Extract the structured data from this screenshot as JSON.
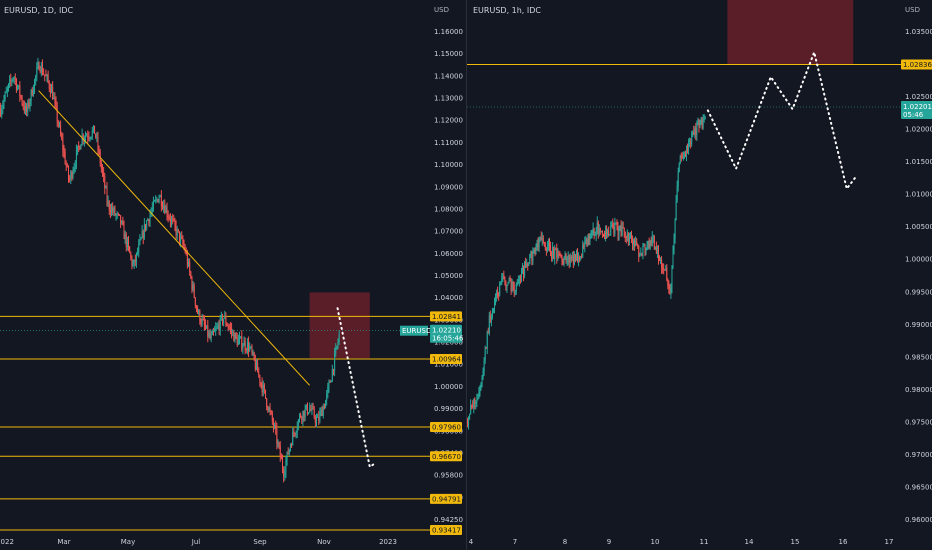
{
  "chart_data": [
    {
      "type": "candlestick",
      "title": "EURUSD, 1D, IDC",
      "currency": "USD",
      "ylim": [
        0.93417,
        1.168
      ],
      "yticks": [
        "1.16000",
        "1.15000",
        "1.14000",
        "1.13000",
        "1.12000",
        "1.11000",
        "1.10000",
        "1.09000",
        "1.08000",
        "1.07000",
        "1.06000",
        "1.05000",
        "1.04000",
        "1.03000",
        "1.02000",
        "1.01000",
        "1.00000",
        "0.99000",
        "0.98000",
        "0.97400",
        "0.95800",
        "0.95000",
        "0.94250"
      ],
      "xticks": [
        "2022",
        "Mar",
        "May",
        "Jul",
        "Sep",
        "Nov",
        "2023"
      ],
      "symbol_label": "EURUSD",
      "price_tag": "1.02210",
      "countdown": "16:05:46",
      "levels": [
        {
          "label": "1.02841",
          "value": 1.02841
        },
        {
          "label": "1.00964",
          "value": 1.00964
        },
        {
          "label": "0.97960",
          "value": 0.9796
        },
        {
          "label": "0.96670",
          "value": 0.9667
        },
        {
          "label": "0.94791",
          "value": 0.94791
        },
        {
          "label": "0.93417",
          "value": 0.93417
        }
      ],
      "current_price": 1.0221,
      "zone": {
        "t0": 0.72,
        "t1": 0.86,
        "y_low": 1.01,
        "y_high": 1.039
      },
      "trendline": [
        {
          "t": 0.09,
          "y": 1.128
        },
        {
          "t": 0.72,
          "y": 0.998
        }
      ],
      "projection": [
        {
          "t": 0.785,
          "y": 1.032
        },
        {
          "t": 0.86,
          "y": 0.962
        },
        {
          "t": 0.875,
          "y": 0.964
        }
      ],
      "close_path": [
        [
          0.0,
          1.12
        ],
        [
          0.03,
          1.135
        ],
        [
          0.06,
          1.118
        ],
        [
          0.09,
          1.14
        ],
        [
          0.12,
          1.128
        ],
        [
          0.16,
          1.088
        ],
        [
          0.19,
          1.108
        ],
        [
          0.22,
          1.11
        ],
        [
          0.25,
          1.078
        ],
        [
          0.28,
          1.07
        ],
        [
          0.31,
          1.05
        ],
        [
          0.34,
          1.07
        ],
        [
          0.37,
          1.082
        ],
        [
          0.4,
          1.07
        ],
        [
          0.43,
          1.058
        ],
        [
          0.46,
          1.03
        ],
        [
          0.49,
          1.018
        ],
        [
          0.52,
          1.028
        ],
        [
          0.55,
          1.018
        ],
        [
          0.58,
          1.015
        ],
        [
          0.61,
          0.998
        ],
        [
          0.64,
          0.978
        ],
        [
          0.66,
          0.96
        ],
        [
          0.68,
          0.975
        ],
        [
          0.7,
          0.985
        ],
        [
          0.72,
          0.988
        ],
        [
          0.74,
          0.982
        ],
        [
          0.76,
          0.992
        ],
        [
          0.78,
          1.01
        ],
        [
          0.79,
          1.02
        ]
      ]
    },
    {
      "type": "candlestick",
      "title": "EURUSD, 1h, IDC",
      "currency": "USD",
      "ylim": [
        0.9588,
        1.038
      ],
      "yticks": [
        "1.03500",
        "1.03000",
        "1.02500",
        "1.02000",
        "1.01500",
        "1.01000",
        "1.00500",
        "1.00000",
        "0.99500",
        "0.99000",
        "0.98500",
        "0.98000",
        "0.97500",
        "0.97000",
        "0.96500",
        "0.96000"
      ],
      "xticks": [
        "4",
        "7",
        "8",
        "9",
        "10",
        "11",
        "14",
        "15",
        "16",
        "17"
      ],
      "price_tag": "1.02201",
      "countdown": "05:46",
      "levels": [
        {
          "label": "1.02836",
          "value": 1.02836
        }
      ],
      "current_price": 1.02201,
      "zone": {
        "t0": 0.6,
        "t1": 0.89,
        "y_low": 1.0283,
        "y_high": 1.04
      },
      "projection": [
        {
          "t": 0.555,
          "y": 1.0215
        },
        {
          "t": 0.62,
          "y": 1.0128
        },
        {
          "t": 0.7,
          "y": 1.0265
        },
        {
          "t": 0.75,
          "y": 1.0217
        },
        {
          "t": 0.8,
          "y": 1.0302
        },
        {
          "t": 0.875,
          "y": 1.0098
        },
        {
          "t": 0.895,
          "y": 1.0115
        }
      ],
      "close_path": [
        [
          0.0,
          0.9755
        ],
        [
          0.03,
          0.98
        ],
        [
          0.05,
          0.99
        ],
        [
          0.08,
          0.996
        ],
        [
          0.11,
          0.995
        ],
        [
          0.14,
          0.999
        ],
        [
          0.17,
          1.002
        ],
        [
          0.2,
          1.0
        ],
        [
          0.23,
          0.999
        ],
        [
          0.26,
          1.0
        ],
        [
          0.3,
          1.004
        ],
        [
          0.32,
          1.003
        ],
        [
          0.34,
          1.004
        ],
        [
          0.37,
          1.003
        ],
        [
          0.4,
          1.0
        ],
        [
          0.43,
          1.002
        ],
        [
          0.46,
          0.997
        ],
        [
          0.47,
          0.9945
        ],
        [
          0.48,
          1.005
        ],
        [
          0.49,
          1.014
        ],
        [
          0.51,
          1.016
        ],
        [
          0.53,
          1.019
        ],
        [
          0.55,
          1.02
        ]
      ]
    }
  ]
}
